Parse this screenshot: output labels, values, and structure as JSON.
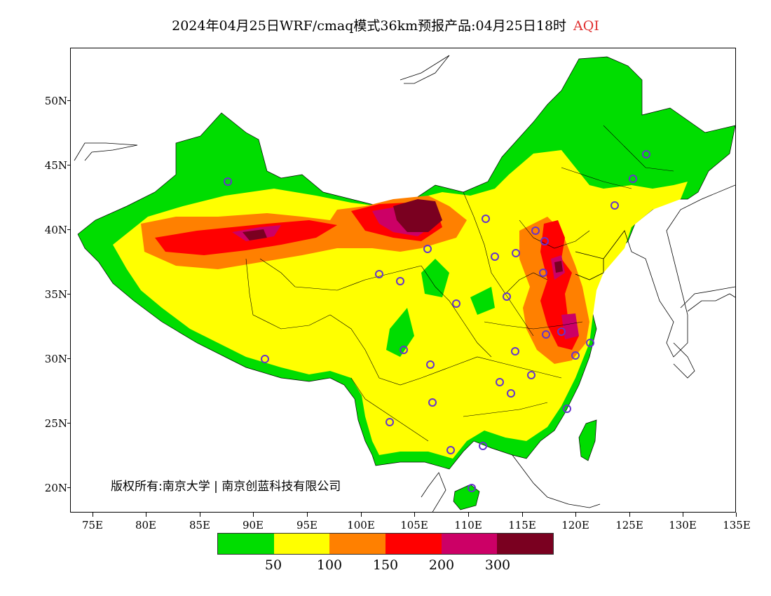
{
  "header": {
    "title": "2024年04月25日WRF/cmaq模式36km预报产品:04月25日18时",
    "product": "AQI"
  },
  "map": {
    "lat_labels": [
      "50N",
      "45N",
      "40N",
      "35N",
      "30N",
      "25N",
      "20N"
    ],
    "lon_labels": [
      "75E",
      "80E",
      "85E",
      "90E",
      "95E",
      "100E",
      "105E",
      "110E",
      "115E",
      "120E",
      "125E",
      "130E",
      "135E"
    ],
    "lon_range": [
      73,
      135
    ],
    "lat_range": [
      18,
      54
    ],
    "copyright": "版权所有:南京大学 | 南京创蓝科技有限公司"
  },
  "legend": {
    "colors": [
      "#00dd00",
      "#ffff00",
      "#ff8000",
      "#ff0000",
      "#cc0066",
      "#7a0020"
    ],
    "labels": [
      "50",
      "100",
      "150",
      "200",
      "300"
    ]
  }
}
